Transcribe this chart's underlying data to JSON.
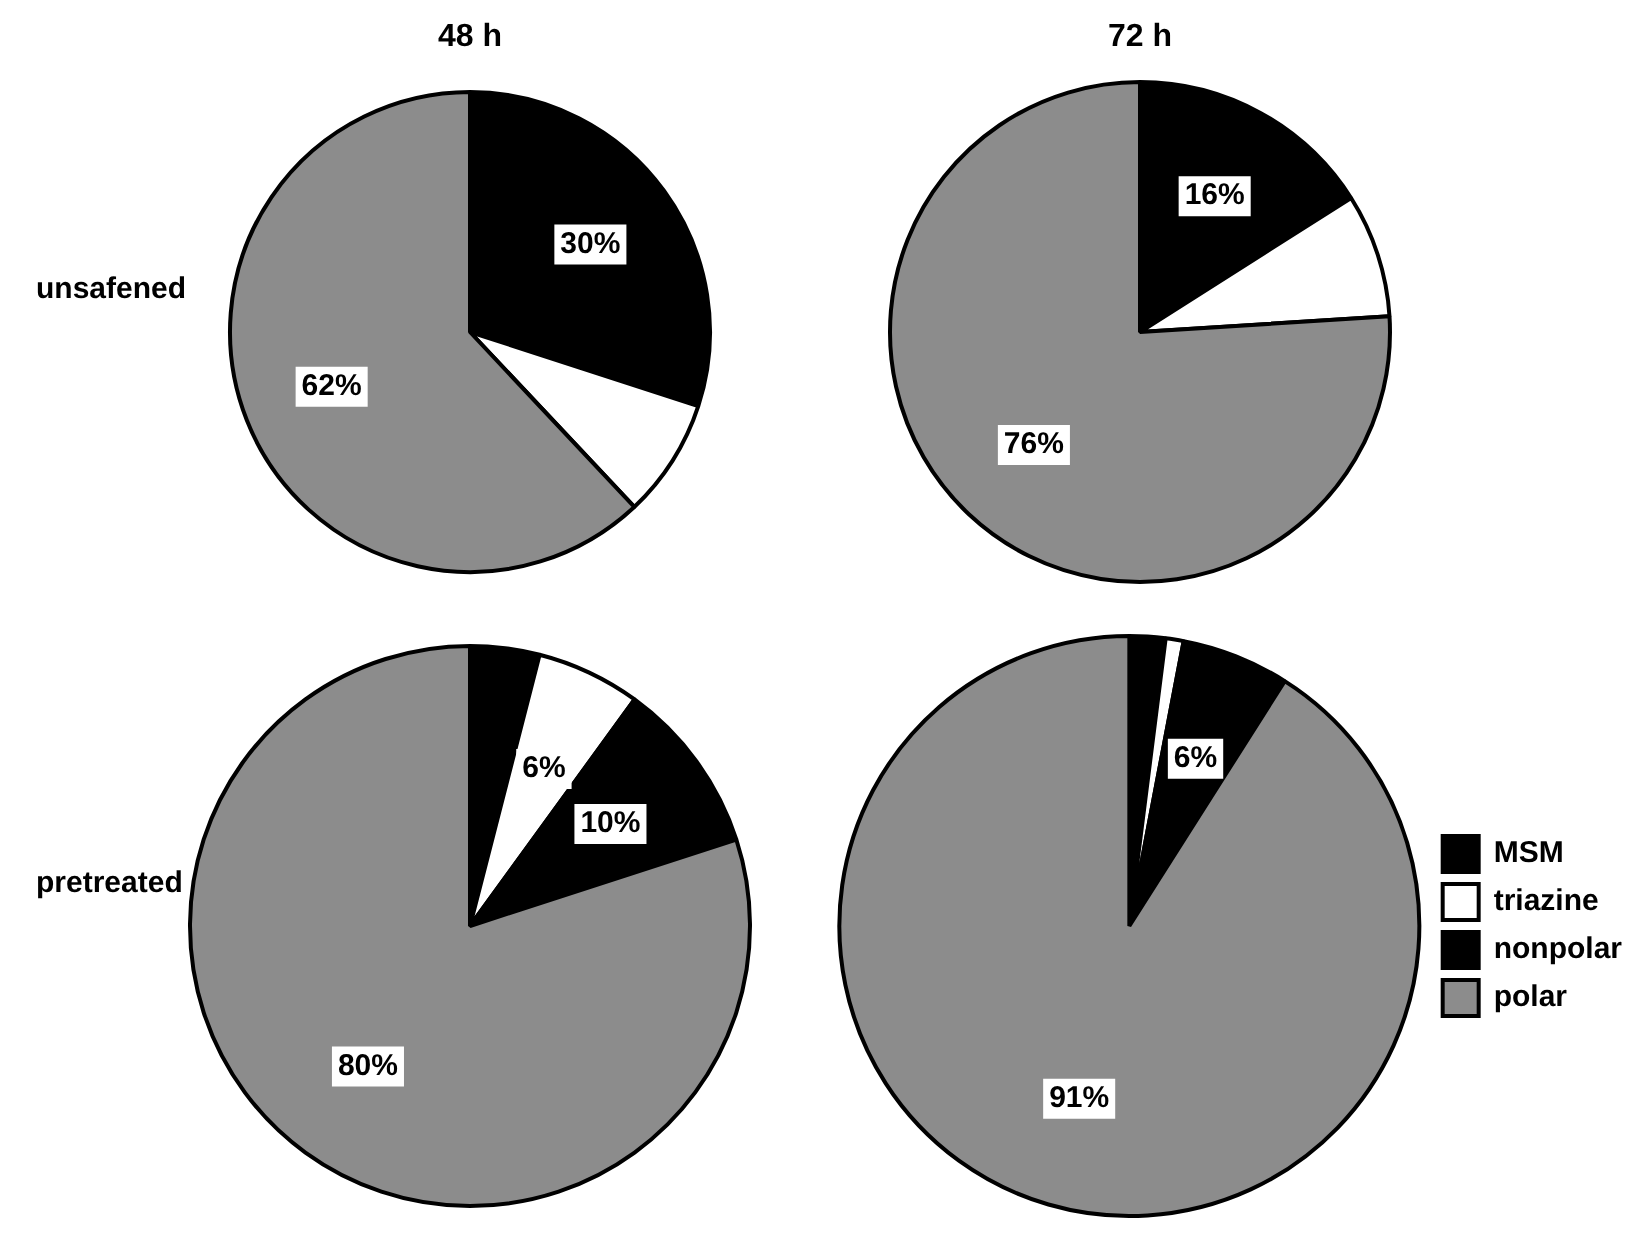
{
  "chart_data": [
    {
      "type": "pie",
      "title": "48 h",
      "ylabel": "unsafened",
      "categories": [
        null,
        null,
        null,
        null
      ],
      "values": [
        30,
        8,
        0,
        62
      ],
      "colors": [
        "#000000",
        "#ffffff",
        "#000000",
        "#8c8c8c"
      ],
      "value_labels": [
        "30%",
        null,
        null,
        "62%"
      ]
    },
    {
      "type": "pie",
      "title": "72 h",
      "categories": [
        null,
        null,
        null,
        null
      ],
      "values": [
        16,
        8,
        0,
        76
      ],
      "colors": [
        "#000000",
        "#ffffff",
        "#000000",
        "#8c8c8c"
      ],
      "value_labels": [
        "16%",
        null,
        null,
        "76%"
      ]
    },
    {
      "type": "pie",
      "ylabel": "pretreated",
      "categories": [
        null,
        null,
        null,
        null
      ],
      "values": [
        4,
        6,
        10,
        80
      ],
      "colors": [
        "#000000",
        "#ffffff",
        "#000000",
        "#8c8c8c"
      ],
      "value_labels": [
        null,
        "6%",
        "10%",
        "80%"
      ]
    },
    {
      "type": "pie",
      "categories": [
        "MSM",
        "triazine",
        "nonpolar",
        "polar"
      ],
      "values": [
        2,
        1,
        6,
        91
      ],
      "colors": [
        "#000000",
        "#ffffff",
        "#000000",
        "#8c8c8c"
      ],
      "value_labels": [
        null,
        null,
        "6%",
        "91%"
      ],
      "legend": "right"
    }
  ]
}
